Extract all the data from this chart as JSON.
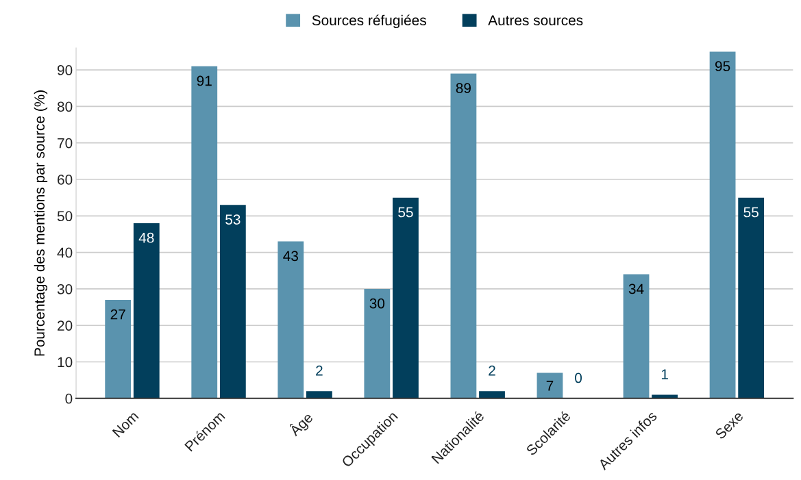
{
  "chart_data": {
    "type": "bar",
    "ylabel": "Pourcentage des mentions par source (%)",
    "categories": [
      "Nom",
      "Prénom",
      "Âge",
      "Occupation",
      "Nationalité",
      "Scolarité",
      "Autres infos",
      "Sexe"
    ],
    "series": [
      {
        "name": "Sources réfugiées",
        "color": "#5a93ae",
        "values": [
          27,
          91,
          43,
          30,
          89,
          7,
          34,
          95
        ]
      },
      {
        "name": "Autres sources",
        "color": "#023f5c",
        "values": [
          48,
          53,
          2,
          55,
          2,
          0,
          1,
          55
        ]
      }
    ],
    "ylim": [
      0,
      96
    ],
    "yticks": [
      0,
      10,
      20,
      30,
      40,
      50,
      60,
      70,
      80,
      90
    ],
    "grid": "y",
    "legend": "top",
    "data_labels": true
  }
}
